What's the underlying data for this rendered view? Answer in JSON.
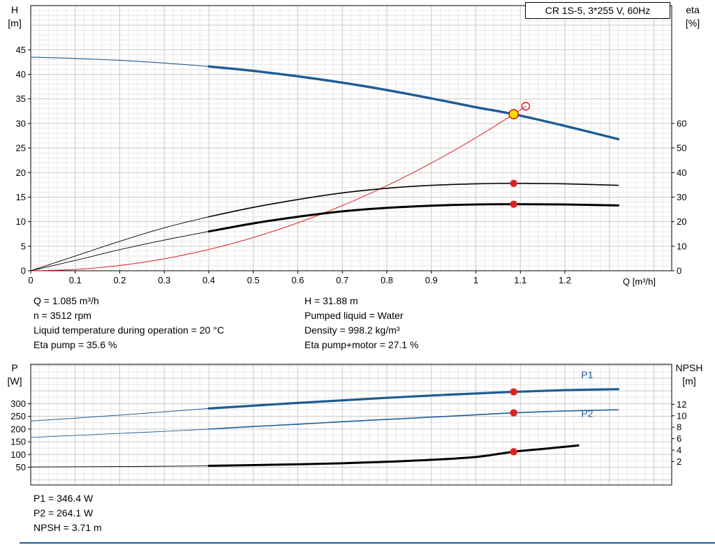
{
  "title_box": "CR 1S-5, 3*255 V, 60Hz",
  "info_top": {
    "left": [
      "Q = 1.085 m³/h",
      "n = 3512 rpm",
      "Liquid temperature during operation = 20 °C",
      "Eta pump = 35.6 %"
    ],
    "right": [
      "H = 31.88 m",
      "Pumped liquid = Water",
      "Density = 998.2 kg/m³",
      "Eta pump+motor = 27.1 %"
    ]
  },
  "info_bottom": [
    "P1 = 346.4 W",
    "P2 = 264.1 W",
    "NPSH = 3.71 m"
  ],
  "colors": {
    "curve_blue": "#1d5c96",
    "curve_black": "#000000",
    "curve_red": "#e02020",
    "duty_yellow": "#ffdd00"
  },
  "chart_data": [
    {
      "type": "line",
      "name": "hq-eta-chart",
      "x_axis": {
        "label": "Q [m³/h]",
        "min": 0,
        "max": 1.44,
        "minor_step": 0.02,
        "major_every": 5,
        "ticks": [
          0,
          0.1,
          0.2,
          0.3,
          0.4,
          0.5,
          0.6,
          0.7,
          0.8,
          0.9,
          1.0,
          1.1,
          1.2
        ]
      },
      "left_axis": {
        "name": "H",
        "unit": "[m]",
        "min": 0,
        "max": 54,
        "minor_step": 1,
        "major_every": 5,
        "ticks": [
          0,
          5,
          10,
          15,
          20,
          25,
          30,
          35,
          40,
          45
        ]
      },
      "right_axis": {
        "name": "eta",
        "unit": "[%]",
        "min": 0,
        "max": 108,
        "ticks": [
          0,
          10,
          20,
          30,
          40,
          50,
          60
        ]
      },
      "series": [
        {
          "name": "h-curve-low-flow",
          "axis": "left",
          "color": "#1d5c96",
          "width": 1.1,
          "points": [
            [
              0,
              43.5
            ],
            [
              0.1,
              43.25
            ],
            [
              0.2,
              42.85
            ],
            [
              0.3,
              42.3
            ],
            [
              0.4,
              41.6
            ]
          ]
        },
        {
          "name": "h-curve",
          "axis": "left",
          "color": "#1d5c96",
          "width": 3.4,
          "points": [
            [
              0.4,
              41.6
            ],
            [
              0.5,
              40.7
            ],
            [
              0.6,
              39.6
            ],
            [
              0.7,
              38.3
            ],
            [
              0.8,
              36.8
            ],
            [
              0.9,
              35.1
            ],
            [
              1.0,
              33.3
            ],
            [
              1.085,
              31.88
            ],
            [
              1.2,
              29.5
            ],
            [
              1.32,
              26.8
            ]
          ]
        },
        {
          "name": "system-curve",
          "axis": "left",
          "color": "#e02020",
          "width": 1,
          "points": [
            [
              0,
              0
            ],
            [
              0.1,
              0.27
            ],
            [
              0.2,
              1.08
            ],
            [
              0.3,
              2.44
            ],
            [
              0.4,
              4.33
            ],
            [
              0.5,
              6.77
            ],
            [
              0.6,
              9.75
            ],
            [
              0.7,
              13.27
            ],
            [
              0.8,
              17.33
            ],
            [
              0.9,
              21.93
            ],
            [
              1.0,
              27.08
            ],
            [
              1.085,
              31.88
            ],
            [
              1.112,
              33.5
            ]
          ]
        },
        {
          "name": "eta-pump-low-flow",
          "axis": "right",
          "color": "#000000",
          "width": 0.9,
          "points": [
            [
              0,
              0
            ],
            [
              0.1,
              6
            ],
            [
              0.2,
              12
            ],
            [
              0.3,
              17.5
            ],
            [
              0.4,
              22
            ]
          ]
        },
        {
          "name": "eta-pump-curve",
          "axis": "right",
          "color": "#000000",
          "width": 1.6,
          "points": [
            [
              0.4,
              22
            ],
            [
              0.5,
              25.8
            ],
            [
              0.6,
              29
            ],
            [
              0.7,
              31.7
            ],
            [
              0.8,
              33.6
            ],
            [
              0.9,
              34.8
            ],
            [
              1.0,
              35.4
            ],
            [
              1.085,
              35.6
            ],
            [
              1.2,
              35.4
            ],
            [
              1.32,
              34.8
            ]
          ]
        },
        {
          "name": "eta-pump-motor-low-flow",
          "axis": "right",
          "color": "#000000",
          "width": 0.9,
          "points": [
            [
              0,
              0
            ],
            [
              0.1,
              4.2
            ],
            [
              0.2,
              8.6
            ],
            [
              0.3,
              12.5
            ],
            [
              0.4,
              16
            ]
          ]
        },
        {
          "name": "eta-pump-motor-curve",
          "axis": "right",
          "color": "#000000",
          "width": 3,
          "points": [
            [
              0.4,
              16
            ],
            [
              0.5,
              19.3
            ],
            [
              0.6,
              22
            ],
            [
              0.7,
              24.2
            ],
            [
              0.8,
              25.6
            ],
            [
              0.9,
              26.5
            ],
            [
              1.0,
              27.0
            ],
            [
              1.085,
              27.1
            ],
            [
              1.2,
              27.0
            ],
            [
              1.32,
              26.6
            ]
          ]
        }
      ],
      "markers": [
        {
          "name": "rated-point",
          "x": 1.112,
          "value": 33.5,
          "axis": "left",
          "r": 5.5,
          "fill": "none",
          "stroke": "#e02020",
          "stroke_width": 1.5
        },
        {
          "name": "duty-point",
          "x": 1.085,
          "value": 31.88,
          "axis": "left",
          "r": 6.5,
          "fill": "#ffdd00",
          "stroke": "#cc2200",
          "stroke_width": 1.6
        },
        {
          "name": "eta-pump-point",
          "x": 1.085,
          "value": 35.6,
          "axis": "right",
          "r": 5.2,
          "fill": "#e02020"
        },
        {
          "name": "eta-pump-motor-point",
          "x": 1.085,
          "value": 27.1,
          "axis": "right",
          "r": 5.2,
          "fill": "#e02020"
        }
      ],
      "labels": []
    },
    {
      "type": "line",
      "name": "power-npsh-chart",
      "x_axis": {
        "label": "",
        "min": 0,
        "max": 1.44,
        "minor_step": 0.02,
        "major_every": 5,
        "ticks": []
      },
      "left_axis": {
        "name": "P",
        "unit": "[W]",
        "min": -20,
        "max": 455,
        "minor_step": 25,
        "major_every": 2,
        "ticks": [
          50,
          100,
          150,
          200,
          250,
          300
        ]
      },
      "right_axis": {
        "name": "NPSH",
        "unit": "[m]",
        "min": -2.1,
        "max": 19.0,
        "ticks": [
          2,
          4,
          6,
          8,
          10,
          12
        ]
      },
      "series": [
        {
          "name": "p1-low-flow",
          "axis": "left",
          "color": "#1d5c96",
          "width": 1,
          "points": [
            [
              0,
              232
            ],
            [
              0.1,
              243
            ],
            [
              0.2,
              255
            ],
            [
              0.3,
              268
            ],
            [
              0.4,
              281
            ]
          ]
        },
        {
          "name": "p1-curve",
          "axis": "left",
          "color": "#1d5c96",
          "width": 3.2,
          "points": [
            [
              0.4,
              281
            ],
            [
              0.5,
              292
            ],
            [
              0.6,
              303
            ],
            [
              0.7,
              313
            ],
            [
              0.8,
              323
            ],
            [
              0.9,
              332
            ],
            [
              1.0,
              340
            ],
            [
              1.085,
              346.4
            ],
            [
              1.2,
              353
            ],
            [
              1.32,
              357
            ]
          ]
        },
        {
          "name": "p2-low-flow",
          "axis": "left",
          "color": "#1d5c96",
          "width": 0.9,
          "points": [
            [
              0,
              167
            ],
            [
              0.1,
              175
            ],
            [
              0.2,
              183
            ],
            [
              0.3,
              191
            ],
            [
              0.4,
              200
            ]
          ]
        },
        {
          "name": "p2-curve",
          "axis": "left",
          "color": "#1d5c96",
          "width": 1.6,
          "points": [
            [
              0.4,
              200
            ],
            [
              0.5,
              210
            ],
            [
              0.6,
              219
            ],
            [
              0.7,
              229
            ],
            [
              0.8,
              238
            ],
            [
              0.9,
              247
            ],
            [
              1.0,
              256
            ],
            [
              1.085,
              264.1
            ],
            [
              1.2,
              271
            ],
            [
              1.32,
              276
            ]
          ]
        },
        {
          "name": "npsh-low-flow",
          "axis": "right",
          "color": "#000000",
          "width": 0.9,
          "points": [
            [
              0,
              1.05
            ],
            [
              0.2,
              1.12
            ],
            [
              0.4,
              1.25
            ]
          ]
        },
        {
          "name": "npsh-curve",
          "axis": "right",
          "color": "#000000",
          "width": 3,
          "points": [
            [
              0.4,
              1.25
            ],
            [
              0.5,
              1.38
            ],
            [
              0.6,
              1.52
            ],
            [
              0.7,
              1.7
            ],
            [
              0.8,
              1.95
            ],
            [
              0.9,
              2.3
            ],
            [
              1.0,
              2.8
            ],
            [
              1.085,
              3.71
            ],
            [
              1.15,
              4.2
            ],
            [
              1.23,
              4.8
            ]
          ]
        }
      ],
      "markers": [
        {
          "name": "p1-point",
          "x": 1.085,
          "value": 346.4,
          "axis": "left",
          "r": 5.2,
          "fill": "#e02020"
        },
        {
          "name": "p2-point",
          "x": 1.085,
          "value": 264.1,
          "axis": "left",
          "r": 5.2,
          "fill": "#e02020"
        },
        {
          "name": "npsh-point",
          "x": 1.085,
          "value": 3.71,
          "axis": "right",
          "r": 5.2,
          "fill": "#e02020"
        }
      ],
      "labels": [
        {
          "text": "P1",
          "x": 1.25,
          "value": 400,
          "axis": "left",
          "color": "#1d5c96"
        },
        {
          "text": "P2",
          "x": 1.25,
          "value": 248,
          "axis": "left",
          "color": "#1d5c96"
        }
      ]
    }
  ]
}
